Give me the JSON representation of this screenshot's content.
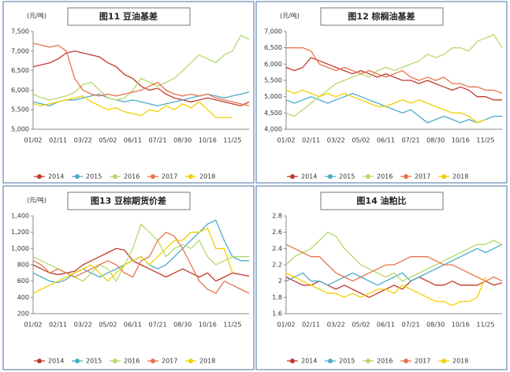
{
  "chart_data": [
    {
      "type": "line",
      "title": "图11 豆油基差",
      "y_unit": "(元/吨)",
      "categories": [
        "01/02",
        null,
        null,
        "02/11",
        null,
        null,
        "03/22",
        null,
        null,
        "05/02",
        null,
        null,
        "06/11",
        null,
        null,
        "07/21",
        null,
        null,
        "08/30",
        null,
        null,
        "10/16",
        null,
        null,
        "11/25",
        null,
        null
      ],
      "ylim": [
        5000,
        7500
      ],
      "yticks": [
        {
          "value": 5000,
          "label": "5,000"
        },
        {
          "value": 5500,
          "label": "5,500"
        },
        {
          "value": 6000,
          "label": "6,000"
        },
        {
          "value": 6500,
          "label": "6,500"
        },
        {
          "value": 7000,
          "label": "7,000"
        },
        {
          "value": 7500,
          "label": "7,500"
        }
      ],
      "series": [
        {
          "name": "2014",
          "color": "#c0392b",
          "values": [
            6600,
            6650,
            6700,
            6800,
            6950,
            7000,
            6950,
            6900,
            6850,
            6700,
            6600,
            6400,
            6300,
            6100,
            6000,
            6050,
            5900,
            5800,
            5750,
            5700,
            5750,
            5800,
            5750,
            5700,
            5650,
            5600,
            5700
          ]
        },
        {
          "name": "2015",
          "color": "#4bacc6",
          "values": [
            5700,
            5650,
            5600,
            5700,
            5750,
            5750,
            5800,
            5850,
            5900,
            5800,
            5750,
            5700,
            5750,
            5700,
            5650,
            5600,
            5650,
            5700,
            5750,
            5800,
            5850,
            5900,
            5850,
            5800,
            5850,
            5900,
            5950
          ]
        },
        {
          "name": "2016",
          "color": "#b5d96b",
          "values": [
            5900,
            5800,
            5750,
            5800,
            5850,
            5950,
            6150,
            6200,
            6000,
            5800,
            5750,
            5800,
            6000,
            6300,
            6200,
            6100,
            6200,
            6300,
            6500,
            6700,
            6900,
            6800,
            6700,
            6900,
            7000,
            7400,
            7300
          ]
        },
        {
          "name": "2017",
          "color": "#e8734d",
          "values": [
            7200,
            7150,
            7100,
            7150,
            7000,
            6300,
            6000,
            5900,
            5850,
            5900,
            5850,
            5900,
            5950,
            6000,
            6100,
            6200,
            6000,
            5900,
            5850,
            5900,
            5850,
            5900,
            5800,
            5750,
            5700,
            5650,
            5600
          ]
        },
        {
          "name": "2018",
          "color": "#f2d000",
          "values": [
            5650,
            5600,
            5650,
            5700,
            5750,
            5800,
            5850,
            5700,
            5600,
            5500,
            5550,
            5450,
            5400,
            5350,
            5500,
            5450,
            5600,
            5500,
            5650,
            5550,
            5700,
            5500,
            5300,
            5300,
            5300,
            null,
            null
          ]
        }
      ]
    },
    {
      "type": "line",
      "title": "图12 棕榈油基差",
      "y_unit": "(元/吨)",
      "categories": [
        "01/02",
        null,
        null,
        "02/11",
        null,
        null,
        "03/22",
        null,
        null,
        "05/02",
        null,
        null,
        "06/11",
        null,
        null,
        "07/21",
        null,
        null,
        "08/30",
        null,
        null,
        "10/16",
        null,
        null,
        "11/25",
        null,
        null
      ],
      "ylim": [
        4000,
        7000
      ],
      "yticks": [
        {
          "value": 4000,
          "label": "4,000"
        },
        {
          "value": 4500,
          "label": "4,500"
        },
        {
          "value": 5000,
          "label": "5,000"
        },
        {
          "value": 5500,
          "label": "5,500"
        },
        {
          "value": 6000,
          "label": "6,000"
        },
        {
          "value": 6500,
          "label": "6,500"
        },
        {
          "value": 7000,
          "label": "7,000"
        }
      ],
      "series": [
        {
          "name": "2014",
          "color": "#c0392b",
          "values": [
            5900,
            5800,
            5900,
            6200,
            6100,
            6000,
            5900,
            5800,
            5700,
            5800,
            5700,
            5600,
            5700,
            5600,
            5500,
            5500,
            5400,
            5500,
            5400,
            5300,
            5200,
            5300,
            5200,
            5000,
            5000,
            4900,
            4900
          ]
        },
        {
          "name": "2015",
          "color": "#4bacc6",
          "values": [
            4900,
            4800,
            4900,
            5000,
            4900,
            4800,
            4900,
            5000,
            5100,
            5000,
            4900,
            4800,
            4700,
            4600,
            4500,
            4600,
            4400,
            4200,
            4300,
            4400,
            4300,
            4200,
            4300,
            4200,
            4300,
            4400,
            4400
          ]
        },
        {
          "name": "2016",
          "color": "#b5d96b",
          "values": [
            4500,
            4400,
            4600,
            4800,
            5000,
            5200,
            5400,
            5500,
            5600,
            5700,
            5600,
            5800,
            5900,
            5800,
            5900,
            6000,
            6100,
            6300,
            6200,
            6300,
            6500,
            6500,
            6400,
            6700,
            6800,
            6900,
            6500
          ]
        },
        {
          "name": "2017",
          "color": "#e8734d",
          "values": [
            6500,
            6500,
            6500,
            6400,
            6000,
            5900,
            5800,
            5900,
            5800,
            5700,
            5800,
            5700,
            5600,
            5700,
            5800,
            5600,
            5500,
            5600,
            5500,
            5600,
            5400,
            5400,
            5300,
            5300,
            5200,
            5200,
            5100
          ]
        },
        {
          "name": "2018",
          "color": "#f2d000",
          "values": [
            5200,
            5100,
            5200,
            5100,
            5000,
            5100,
            5000,
            5100,
            5000,
            4900,
            4800,
            4700,
            4700,
            4800,
            4900,
            4800,
            4900,
            4800,
            4700,
            4600,
            4500,
            4500,
            4400,
            4200,
            4300,
            null,
            null
          ]
        }
      ]
    },
    {
      "type": "line",
      "title": "图13 豆棕期货价差",
      "y_unit": "(元/吨)",
      "categories": [
        "01/02",
        null,
        null,
        "02/11",
        null,
        null,
        "03/22",
        null,
        null,
        "05/02",
        null,
        null,
        "06/11",
        null,
        null,
        "07/21",
        null,
        null,
        "08/30",
        null,
        null,
        "10/16",
        null,
        null,
        "11/25",
        null,
        null
      ],
      "ylim": [
        200,
        1400
      ],
      "yticks": [
        200,
        400,
        600,
        800,
        {
          "value": 1000,
          "label": "1,000"
        },
        {
          "value": 1200,
          "label": "1,200"
        },
        {
          "value": 1400,
          "label": "1,400"
        }
      ],
      "series": [
        {
          "name": "2014",
          "color": "#c0392b",
          "values": [
            800,
            750,
            700,
            680,
            700,
            720,
            800,
            850,
            900,
            950,
            1000,
            980,
            850,
            800,
            750,
            700,
            650,
            700,
            750,
            700,
            650,
            700,
            600,
            650,
            700,
            680,
            660
          ]
        },
        {
          "name": "2015",
          "color": "#4bacc6",
          "values": [
            700,
            650,
            600,
            580,
            620,
            700,
            750,
            700,
            650,
            700,
            750,
            800,
            850,
            900,
            800,
            750,
            800,
            900,
            1000,
            1100,
            1200,
            1300,
            1350,
            1100,
            900,
            850,
            850
          ]
        },
        {
          "name": "2016",
          "color": "#b5d96b",
          "values": [
            900,
            850,
            800,
            750,
            700,
            650,
            600,
            700,
            800,
            750,
            600,
            800,
            1000,
            1300,
            1200,
            1100,
            900,
            1000,
            1050,
            1000,
            1100,
            900,
            800,
            850,
            900,
            900,
            900
          ]
        },
        {
          "name": "2017",
          "color": "#e8734d",
          "values": [
            850,
            800,
            700,
            750,
            700,
            650,
            700,
            750,
            800,
            850,
            800,
            700,
            650,
            850,
            900,
            1100,
            1200,
            1150,
            1000,
            800,
            600,
            500,
            450,
            600,
            550,
            500,
            450
          ]
        },
        {
          "name": "2018",
          "color": "#f2d000",
          "values": [
            450,
            500,
            550,
            600,
            650,
            700,
            750,
            800,
            700,
            600,
            700,
            800,
            850,
            900,
            800,
            900,
            1000,
            1100,
            1100,
            1200,
            1200,
            1250,
            1000,
            1000,
            700,
            null,
            null
          ]
        }
      ]
    },
    {
      "type": "line",
      "title": "图14 油粕比",
      "categories": [
        "01/02",
        null,
        null,
        "02/11",
        null,
        null,
        "03/22",
        null,
        null,
        "05/02",
        null,
        null,
        "06/11",
        null,
        null,
        "07/21",
        null,
        null,
        "08/30",
        null,
        null,
        "10/16",
        null,
        null,
        "11/25",
        null,
        null
      ],
      "ylim": [
        1.6,
        2.8
      ],
      "yticks": [
        1.6,
        1.8,
        2,
        2.2,
        2.4,
        2.6,
        2.8
      ],
      "series": [
        {
          "name": "2014",
          "color": "#c0392b",
          "values": [
            2.05,
            2.0,
            1.95,
            1.95,
            2.0,
            1.95,
            1.9,
            1.95,
            1.9,
            1.85,
            1.8,
            1.85,
            1.9,
            1.95,
            1.9,
            2.0,
            2.05,
            2.0,
            1.95,
            1.95,
            2.0,
            1.95,
            1.95,
            1.95,
            2.0,
            1.95,
            1.98
          ]
        },
        {
          "name": "2015",
          "color": "#4bacc6",
          "values": [
            2.0,
            2.05,
            2.1,
            2.0,
            2.0,
            1.95,
            2.0,
            2.05,
            2.1,
            2.05,
            2.0,
            1.95,
            2.0,
            2.05,
            2.1,
            2.0,
            2.05,
            2.1,
            2.15,
            2.2,
            2.25,
            2.3,
            2.35,
            2.4,
            2.35,
            2.4,
            2.45
          ]
        },
        {
          "name": "2016",
          "color": "#b5d96b",
          "values": [
            2.2,
            2.3,
            2.35,
            2.4,
            2.5,
            2.6,
            2.55,
            2.4,
            2.3,
            2.2,
            2.15,
            2.1,
            2.05,
            2.1,
            2.0,
            2.05,
            2.1,
            2.15,
            2.2,
            2.25,
            2.3,
            2.35,
            2.4,
            2.45,
            2.45,
            2.5,
            2.45
          ]
        },
        {
          "name": "2017",
          "color": "#e8734d",
          "values": [
            2.45,
            2.4,
            2.35,
            2.3,
            2.3,
            2.2,
            2.1,
            2.05,
            2.0,
            2.05,
            2.1,
            2.15,
            2.2,
            2.2,
            2.25,
            2.3,
            2.3,
            2.3,
            2.25,
            2.2,
            2.2,
            2.15,
            2.1,
            2.05,
            2.0,
            2.05,
            2.0
          ]
        },
        {
          "name": "2018",
          "color": "#f2d000",
          "values": [
            2.1,
            2.05,
            2.0,
            1.95,
            1.9,
            1.85,
            1.85,
            1.8,
            1.85,
            1.8,
            1.85,
            1.9,
            1.9,
            1.85,
            1.95,
            1.9,
            1.85,
            1.8,
            1.75,
            1.75,
            1.7,
            1.75,
            1.75,
            1.8,
            2.05,
            null,
            null
          ]
        }
      ]
    }
  ]
}
